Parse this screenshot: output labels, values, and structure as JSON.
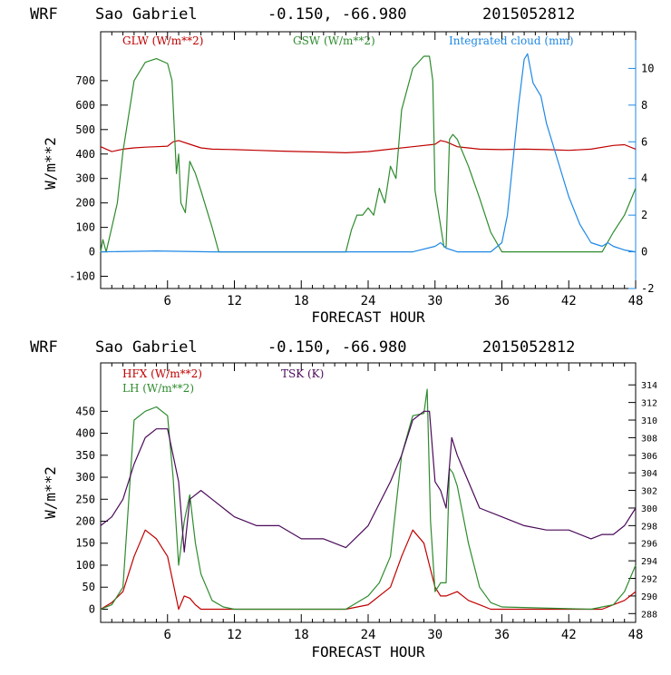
{
  "chart_data": [
    {
      "type": "line",
      "title": "WRF   Sao Gabriel   -0.150, -66.980  2015052812",
      "xlabel": "FORECAST HOUR",
      "ylabel": "W/m**2",
      "xlim": [
        0,
        48
      ],
      "ylim": [
        -150,
        900
      ],
      "y2lim": [
        -2,
        12
      ],
      "xticks": [
        6,
        12,
        18,
        24,
        30,
        36,
        42,
        48
      ],
      "xtick_labels": [
        "6",
        "12",
        "18",
        "24",
        "30",
        "36",
        "42",
        "48"
      ],
      "yticks": [
        -100,
        0,
        100,
        200,
        300,
        400,
        500,
        600,
        700
      ],
      "ytick_labels": [
        "-100",
        "0",
        "100",
        "200",
        "300",
        "400",
        "500",
        "600",
        "700"
      ],
      "y2ticks": [
        -2,
        0,
        2,
        4,
        6,
        8,
        10
      ],
      "y2tick_labels": [
        "-2",
        "0",
        "2",
        "4",
        "6",
        "8",
        "10"
      ],
      "series": [
        {
          "name": "GLW (W/m**2)",
          "color": "#c00000",
          "axis": "left",
          "x": [
            0,
            1,
            2,
            3,
            4,
            5,
            6,
            6.5,
            7,
            8,
            9,
            10,
            12,
            14,
            16,
            18,
            20,
            22,
            24,
            26,
            28,
            30,
            30.5,
            31,
            32,
            34,
            36,
            38,
            40,
            42,
            44,
            46,
            47,
            48
          ],
          "values": [
            430,
            410,
            420,
            425,
            428,
            430,
            432,
            450,
            455,
            440,
            425,
            420,
            418,
            415,
            412,
            410,
            408,
            405,
            410,
            420,
            430,
            440,
            455,
            450,
            430,
            420,
            418,
            420,
            418,
            415,
            420,
            435,
            438,
            420
          ]
        },
        {
          "name": "GSW (W/m**2)",
          "color": "#2e8b2e",
          "axis": "left",
          "x": [
            0,
            0.2,
            0.5,
            1,
            1.5,
            2,
            3,
            4,
            5,
            6,
            6.4,
            6.8,
            7,
            7.2,
            7.6,
            8,
            8.5,
            9,
            10,
            10.6,
            11,
            22,
            22.5,
            23,
            23.5,
            24,
            24.5,
            25,
            25.5,
            26,
            26.5,
            27,
            28,
            29,
            29.5,
            29.8,
            30,
            30.8,
            31,
            31.3,
            31.6,
            32,
            33,
            34,
            35,
            36,
            45,
            46,
            47,
            48
          ],
          "values": [
            0,
            50,
            0,
            100,
            200,
            410,
            700,
            775,
            790,
            770,
            700,
            320,
            400,
            200,
            160,
            370,
            320,
            250,
            100,
            0,
            0,
            0,
            90,
            150,
            150,
            180,
            150,
            260,
            200,
            350,
            300,
            580,
            750,
            800,
            800,
            700,
            250,
            20,
            20,
            460,
            480,
            460,
            350,
            220,
            80,
            0,
            0,
            80,
            150,
            260
          ]
        },
        {
          "name": "Integrated cloud (mm)",
          "color": "#1e88e5",
          "axis": "right",
          "x": [
            0,
            5,
            10,
            20,
            28,
            30,
            30.5,
            31,
            32,
            35,
            36,
            36.5,
            37,
            37.5,
            38,
            38.3,
            38.8,
            39.5,
            40,
            41,
            42,
            43,
            44,
            45,
            45.5,
            46,
            47,
            48
          ],
          "values": [
            0,
            0.05,
            0,
            0,
            0,
            0.3,
            0.5,
            0.2,
            0,
            0,
            0.5,
            2,
            5,
            8,
            10.5,
            10.8,
            9.2,
            8.5,
            7,
            5,
            3,
            1.5,
            0.5,
            0.3,
            0.5,
            0.3,
            0.1,
            0
          ]
        }
      ]
    },
    {
      "type": "line",
      "title": "WRF   Sao Gabriel   -0.150, -66.980  2015052812",
      "xlabel": "FORECAST HOUR",
      "ylabel": "W/m**2",
      "xlim": [
        0,
        48
      ],
      "ylim": [
        -30,
        560
      ],
      "y2lim": [
        287,
        316.5
      ],
      "xticks": [
        6,
        12,
        18,
        24,
        30,
        36,
        42,
        48
      ],
      "xtick_labels": [
        "6",
        "12",
        "18",
        "24",
        "30",
        "36",
        "42",
        "48"
      ],
      "yticks": [
        0,
        50,
        100,
        150,
        200,
        250,
        300,
        350,
        400,
        450
      ],
      "ytick_labels": [
        "0",
        "50",
        "100",
        "150",
        "200",
        "250",
        "300",
        "350",
        "400",
        "450"
      ],
      "y2ticks": [
        288,
        290,
        292,
        294,
        296,
        298,
        300,
        302,
        304,
        306,
        308,
        310,
        312,
        314
      ],
      "y2tick_labels": [
        "288",
        "290",
        "292",
        "294",
        "296",
        "298",
        "300",
        "302",
        "304",
        "306",
        "308",
        "310",
        "312",
        "314"
      ],
      "series": [
        {
          "name": "HFX (W/m**2)",
          "color": "#c00000",
          "axis": "left",
          "x": [
            0,
            1,
            2,
            3,
            4,
            5,
            6,
            6.5,
            7,
            7.5,
            8,
            8.5,
            9,
            10,
            12,
            20,
            22,
            24,
            26,
            27,
            28,
            29,
            29.5,
            30,
            30.5,
            31,
            32,
            33,
            34,
            35,
            36,
            40,
            45,
            46,
            47,
            48
          ],
          "values": [
            0,
            15,
            40,
            120,
            180,
            160,
            120,
            60,
            0,
            30,
            25,
            10,
            0,
            0,
            0,
            0,
            0,
            10,
            50,
            120,
            180,
            150,
            100,
            50,
            30,
            30,
            40,
            20,
            10,
            0,
            0,
            0,
            0,
            10,
            20,
            40
          ]
        },
        {
          "name": "LH (W/m**2)",
          "color": "#2e8b2e",
          "axis": "left",
          "x": [
            0,
            1,
            2,
            3,
            4,
            5,
            6,
            6.5,
            7,
            7.5,
            8,
            8.5,
            9,
            10,
            11,
            12,
            20,
            22,
            24,
            25,
            26,
            27,
            28,
            29,
            29.3,
            29.6,
            30,
            30.5,
            31,
            31.3,
            31.6,
            32,
            33,
            34,
            35,
            36,
            44,
            45,
            46,
            47,
            48
          ],
          "values": [
            0,
            10,
            50,
            430,
            450,
            460,
            440,
            300,
            100,
            200,
            260,
            150,
            80,
            20,
            5,
            0,
            0,
            0,
            30,
            60,
            120,
            350,
            440,
            445,
            500,
            200,
            40,
            60,
            60,
            320,
            310,
            280,
            150,
            50,
            15,
            5,
            0,
            5,
            10,
            40,
            100
          ]
        },
        {
          "name": "TSK (K)",
          "color": "#4b0a5a",
          "axis": "right",
          "x": [
            0,
            1,
            2,
            3,
            4,
            5,
            6,
            7,
            7.5,
            8,
            9,
            10,
            12,
            14,
            16,
            18,
            20,
            22,
            24,
            26,
            27,
            28,
            29,
            29.5,
            30,
            30.5,
            31,
            31.5,
            32,
            33,
            34,
            36,
            38,
            40,
            42,
            44,
            45,
            46,
            47,
            48
          ],
          "values": [
            298,
            299,
            301,
            305,
            308,
            309,
            309,
            303,
            295,
            301,
            302,
            301,
            299,
            298,
            298,
            296.5,
            296.5,
            295.5,
            298,
            303,
            306,
            310,
            311,
            311,
            303,
            302,
            300,
            308,
            306,
            303,
            300,
            299,
            298,
            297.5,
            297.5,
            296.5,
            297,
            297,
            298,
            300
          ]
        }
      ]
    }
  ],
  "panel1": {
    "title_wrf": "WRF",
    "title_location": "Sao Gabriel",
    "title_coords": "-0.150, -66.980",
    "title_date": "2015052812",
    "legend_glw": "GLW (W/m**2)",
    "legend_gsw": "GSW (W/m**2)",
    "legend_cloud": "Integrated cloud (mm)",
    "xlabel": "FORECAST HOUR",
    "ylabel": "W/m**2"
  },
  "panel2": {
    "title_wrf": "WRF",
    "title_location": "Sao Gabriel",
    "title_coords": "-0.150, -66.980",
    "title_date": "2015052812",
    "legend_hfx": "HFX (W/m**2)",
    "legend_lh": "LH (W/m**2)",
    "legend_tsk": "TSK (K)",
    "xlabel": "FORECAST HOUR",
    "ylabel": "W/m**2"
  }
}
